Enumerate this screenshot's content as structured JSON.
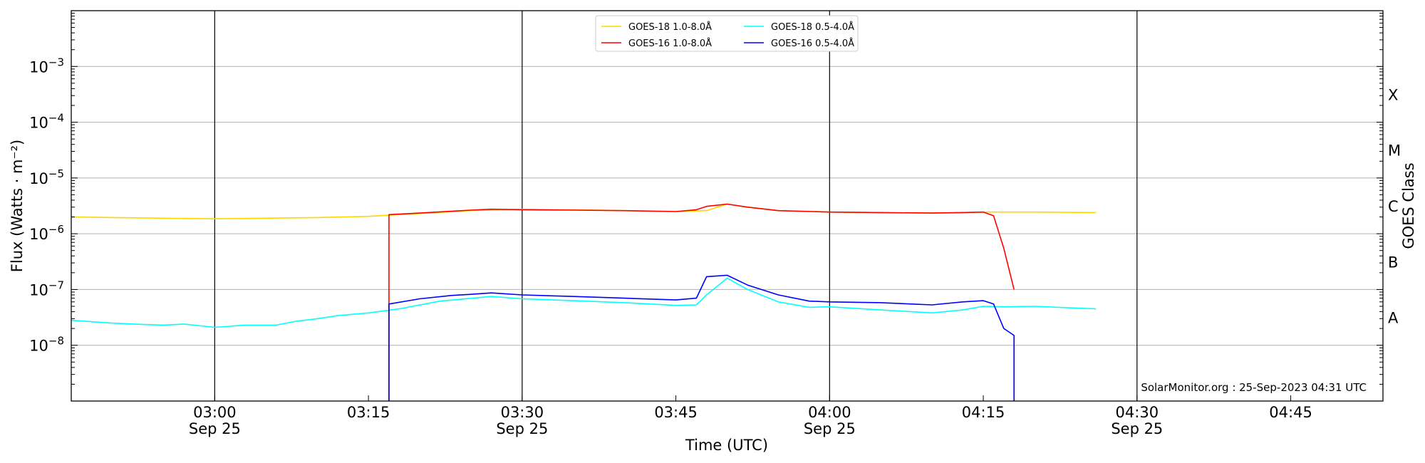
{
  "chart_data": {
    "type": "line",
    "xlabel": "Time (UTC)",
    "ylabel": "Flux (Watts · m⁻²)",
    "ylabel_right": "GOES Class",
    "yscale": "log",
    "ylim": [
      1e-09,
      0.01
    ],
    "xlim": [
      "02:46",
      "04:54"
    ],
    "x_ticks": [
      {
        "time": "03:00",
        "label": "03:00",
        "sublabel": "Sep 25"
      },
      {
        "time": "03:15",
        "label": "03:15",
        "sublabel": ""
      },
      {
        "time": "03:30",
        "label": "03:30",
        "sublabel": "Sep 25"
      },
      {
        "time": "03:45",
        "label": "03:45",
        "sublabel": ""
      },
      {
        "time": "04:00",
        "label": "04:00",
        "sublabel": "Sep 25"
      },
      {
        "time": "04:15",
        "label": "04:15",
        "sublabel": ""
      },
      {
        "time": "04:30",
        "label": "04:30",
        "sublabel": "Sep 25"
      },
      {
        "time": "04:45",
        "label": "04:45",
        "sublabel": ""
      }
    ],
    "vertical_lines": [
      "03:00",
      "03:30",
      "04:00",
      "04:30"
    ],
    "y_ticks": [
      {
        "exp": -8,
        "label": "10"
      },
      {
        "exp": -7,
        "label": "10"
      },
      {
        "exp": -6,
        "label": "10"
      },
      {
        "exp": -5,
        "label": "10"
      },
      {
        "exp": -4,
        "label": "10"
      },
      {
        "exp": -3,
        "label": "10"
      }
    ],
    "grid": "horizontal",
    "goes_classes": [
      {
        "label": "A",
        "exp": -7.5
      },
      {
        "label": "B",
        "exp": -6.5
      },
      {
        "label": "C",
        "exp": -5.5
      },
      {
        "label": "M",
        "exp": -4.5
      },
      {
        "label": "X",
        "exp": -3.5
      }
    ],
    "legend": {
      "placement": "top-center",
      "entries": [
        {
          "name": "GOES-18 1.0-8.0Å",
          "color": "#FFD700"
        },
        {
          "name": "GOES-18 0.5-4.0Å",
          "color": "#00FFFF"
        },
        {
          "name": "GOES-16 1.0-8.0Å",
          "color": "#FF0000"
        },
        {
          "name": "GOES-16 0.5-4.0Å",
          "color": "#0000FF"
        }
      ]
    },
    "watermark": "SolarMonitor.org : 25-Sep-2023 04:31 UTC",
    "series": [
      {
        "name": "GOES-18 1.0-8.0Å",
        "color": "#FFD700",
        "x": [
          "02:46",
          "02:50",
          "02:55",
          "03:00",
          "03:05",
          "03:10",
          "03:15",
          "03:20",
          "03:25",
          "03:30",
          "03:35",
          "03:40",
          "03:45",
          "03:48",
          "03:50",
          "03:52",
          "03:55",
          "04:00",
          "04:05",
          "04:10",
          "04:15",
          "04:20",
          "04:26"
        ],
        "y": [
          2e-06,
          1.95e-06,
          1.9e-06,
          1.85e-06,
          1.9e-06,
          1.95e-06,
          2.05e-06,
          2.3e-06,
          2.6e-06,
          2.75e-06,
          2.7e-06,
          2.6e-06,
          2.5e-06,
          2.6e-06,
          3.4e-06,
          3e-06,
          2.6e-06,
          2.45e-06,
          2.4e-06,
          2.35e-06,
          2.45e-06,
          2.45e-06,
          2.4e-06
        ]
      },
      {
        "name": "GOES-18 0.5-4.0Å",
        "color": "#00FFFF",
        "x": [
          "02:46",
          "02:50",
          "02:52",
          "02:55",
          "02:57",
          "03:00",
          "03:03",
          "03:06",
          "03:08",
          "03:10",
          "03:12",
          "03:15",
          "03:18",
          "03:22",
          "03:27",
          "03:30",
          "03:35",
          "03:40",
          "03:45",
          "03:47",
          "03:48",
          "03:50",
          "03:52",
          "03:55",
          "03:58",
          "04:00",
          "04:05",
          "04:08",
          "04:10",
          "04:13",
          "04:15",
          "04:17",
          "04:20",
          "04:26"
        ],
        "y": [
          2.8e-08,
          2.5e-08,
          2.4e-08,
          2.3e-08,
          2.4e-08,
          2.1e-08,
          2.3e-08,
          2.3e-08,
          2.7e-08,
          3e-08,
          3.4e-08,
          3.8e-08,
          4.5e-08,
          6.2e-08,
          7.5e-08,
          6.8e-08,
          6.3e-08,
          5.8e-08,
          5.2e-08,
          5.3e-08,
          8e-08,
          1.6e-07,
          1e-07,
          6e-08,
          4.8e-08,
          4.9e-08,
          4.3e-08,
          4e-08,
          3.8e-08,
          4.3e-08,
          5e-08,
          4.9e-08,
          5e-08,
          4.5e-08
        ]
      },
      {
        "name": "GOES-16 1.0-8.0Å",
        "color": "#FF0000",
        "x": [
          "03:17",
          "03:17",
          "03:20",
          "03:25",
          "03:27",
          "03:30",
          "03:35",
          "03:40",
          "03:45",
          "03:47",
          "03:48",
          "03:50",
          "03:52",
          "03:55",
          "04:00",
          "04:05",
          "04:10",
          "04:13",
          "04:15",
          "04:16",
          "04:17",
          "04:18"
        ],
        "y": [
          1e-09,
          2.2e-06,
          2.35e-06,
          2.65e-06,
          2.75e-06,
          2.7e-06,
          2.65e-06,
          2.6e-06,
          2.5e-06,
          2.7e-06,
          3.1e-06,
          3.4e-06,
          3e-06,
          2.6e-06,
          2.45e-06,
          2.4e-06,
          2.35e-06,
          2.4e-06,
          2.45e-06,
          2.1e-06,
          5.5e-07,
          1e-07
        ]
      },
      {
        "name": "GOES-16 0.5-4.0Å",
        "color": "#0000FF",
        "x": [
          "03:17",
          "03:17",
          "03:20",
          "03:23",
          "03:25",
          "03:27",
          "03:30",
          "03:35",
          "03:40",
          "03:45",
          "03:47",
          "03:48",
          "03:50",
          "03:52",
          "03:55",
          "03:58",
          "04:00",
          "04:05",
          "04:08",
          "04:10",
          "04:13",
          "04:15",
          "04:16",
          "04:17",
          "04:18",
          "04:18"
        ],
        "y": [
          1e-09,
          5.5e-08,
          6.8e-08,
          7.8e-08,
          8.2e-08,
          8.7e-08,
          8e-08,
          7.5e-08,
          7e-08,
          6.5e-08,
          7e-08,
          1.7e-07,
          1.8e-07,
          1.2e-07,
          8e-08,
          6.2e-08,
          6e-08,
          5.8e-08,
          5.5e-08,
          5.3e-08,
          6e-08,
          6.3e-08,
          5.5e-08,
          2e-08,
          1.5e-08,
          1e-09
        ]
      }
    ]
  }
}
